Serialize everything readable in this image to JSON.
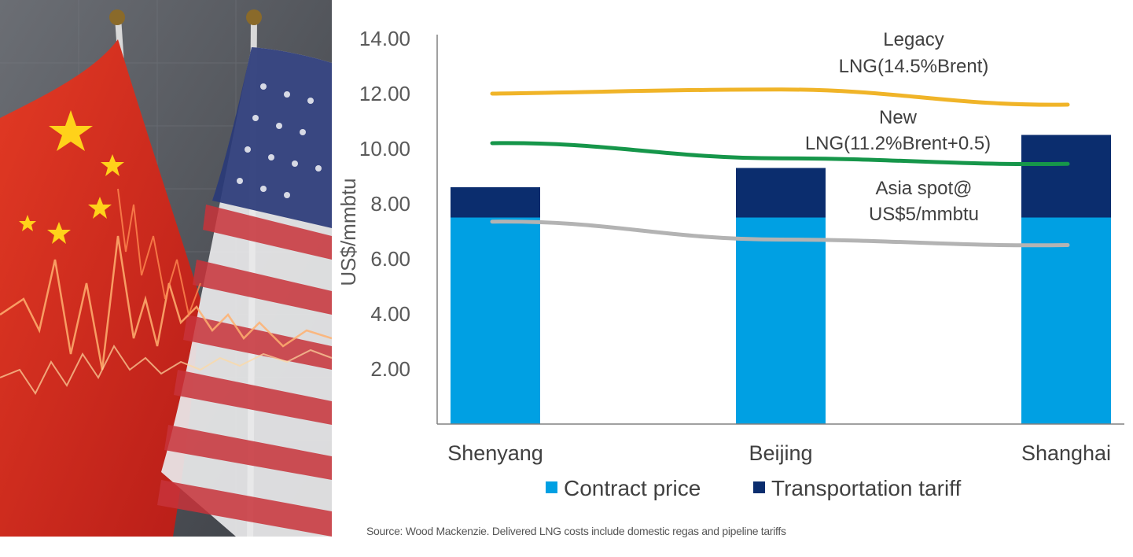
{
  "photo": {
    "description_icon": "china-us-flags-stock-chart-photo",
    "colors": {
      "china_red": "#d7261e",
      "star_yellow": "#ffd21a",
      "us_blue": "#2a3a78",
      "us_red": "#c8333a",
      "background": "#5a5d63"
    }
  },
  "chart_data": {
    "type": "bar",
    "stacked": true,
    "categories": [
      "Shenyang",
      "Beijing",
      "Shanghai"
    ],
    "series": [
      {
        "name": "Contract price",
        "values": [
          7.5,
          7.5,
          7.5
        ],
        "color": "#00a0e3"
      },
      {
        "name": "Transportation tariff",
        "values": [
          1.1,
          1.8,
          3.0
        ],
        "color": "#0b2d6e"
      }
    ],
    "lines": [
      {
        "label_lines": [
          "Legacy",
          "LNG(14.5%Brent)"
        ],
        "values": [
          12.0,
          12.15,
          11.6
        ],
        "color": "#f0b428"
      },
      {
        "label_lines": [
          "New",
          "LNG(11.2%Brent+0.5)"
        ],
        "values": [
          10.2,
          9.65,
          9.45
        ],
        "color": "#16964a"
      },
      {
        "label_lines": [
          "Asia spot@",
          "US$5/mmbtu"
        ],
        "values": [
          7.35,
          6.7,
          6.5
        ],
        "color": "#b3b3b3"
      }
    ],
    "ylabel": "US$/mmbtu",
    "ylim": [
      0,
      14
    ],
    "yticks": [
      "14.00",
      "12.00",
      "10.00",
      "8.00",
      "6.00",
      "4.00",
      "2.00"
    ],
    "ytick_values": [
      14,
      12,
      10,
      8,
      6,
      4,
      2
    ],
    "legend_position": "bottom",
    "grid": false
  },
  "source_note": "Source: Wood Mackenzie. Delivered LNG costs include domestic regas and pipeline tariffs"
}
